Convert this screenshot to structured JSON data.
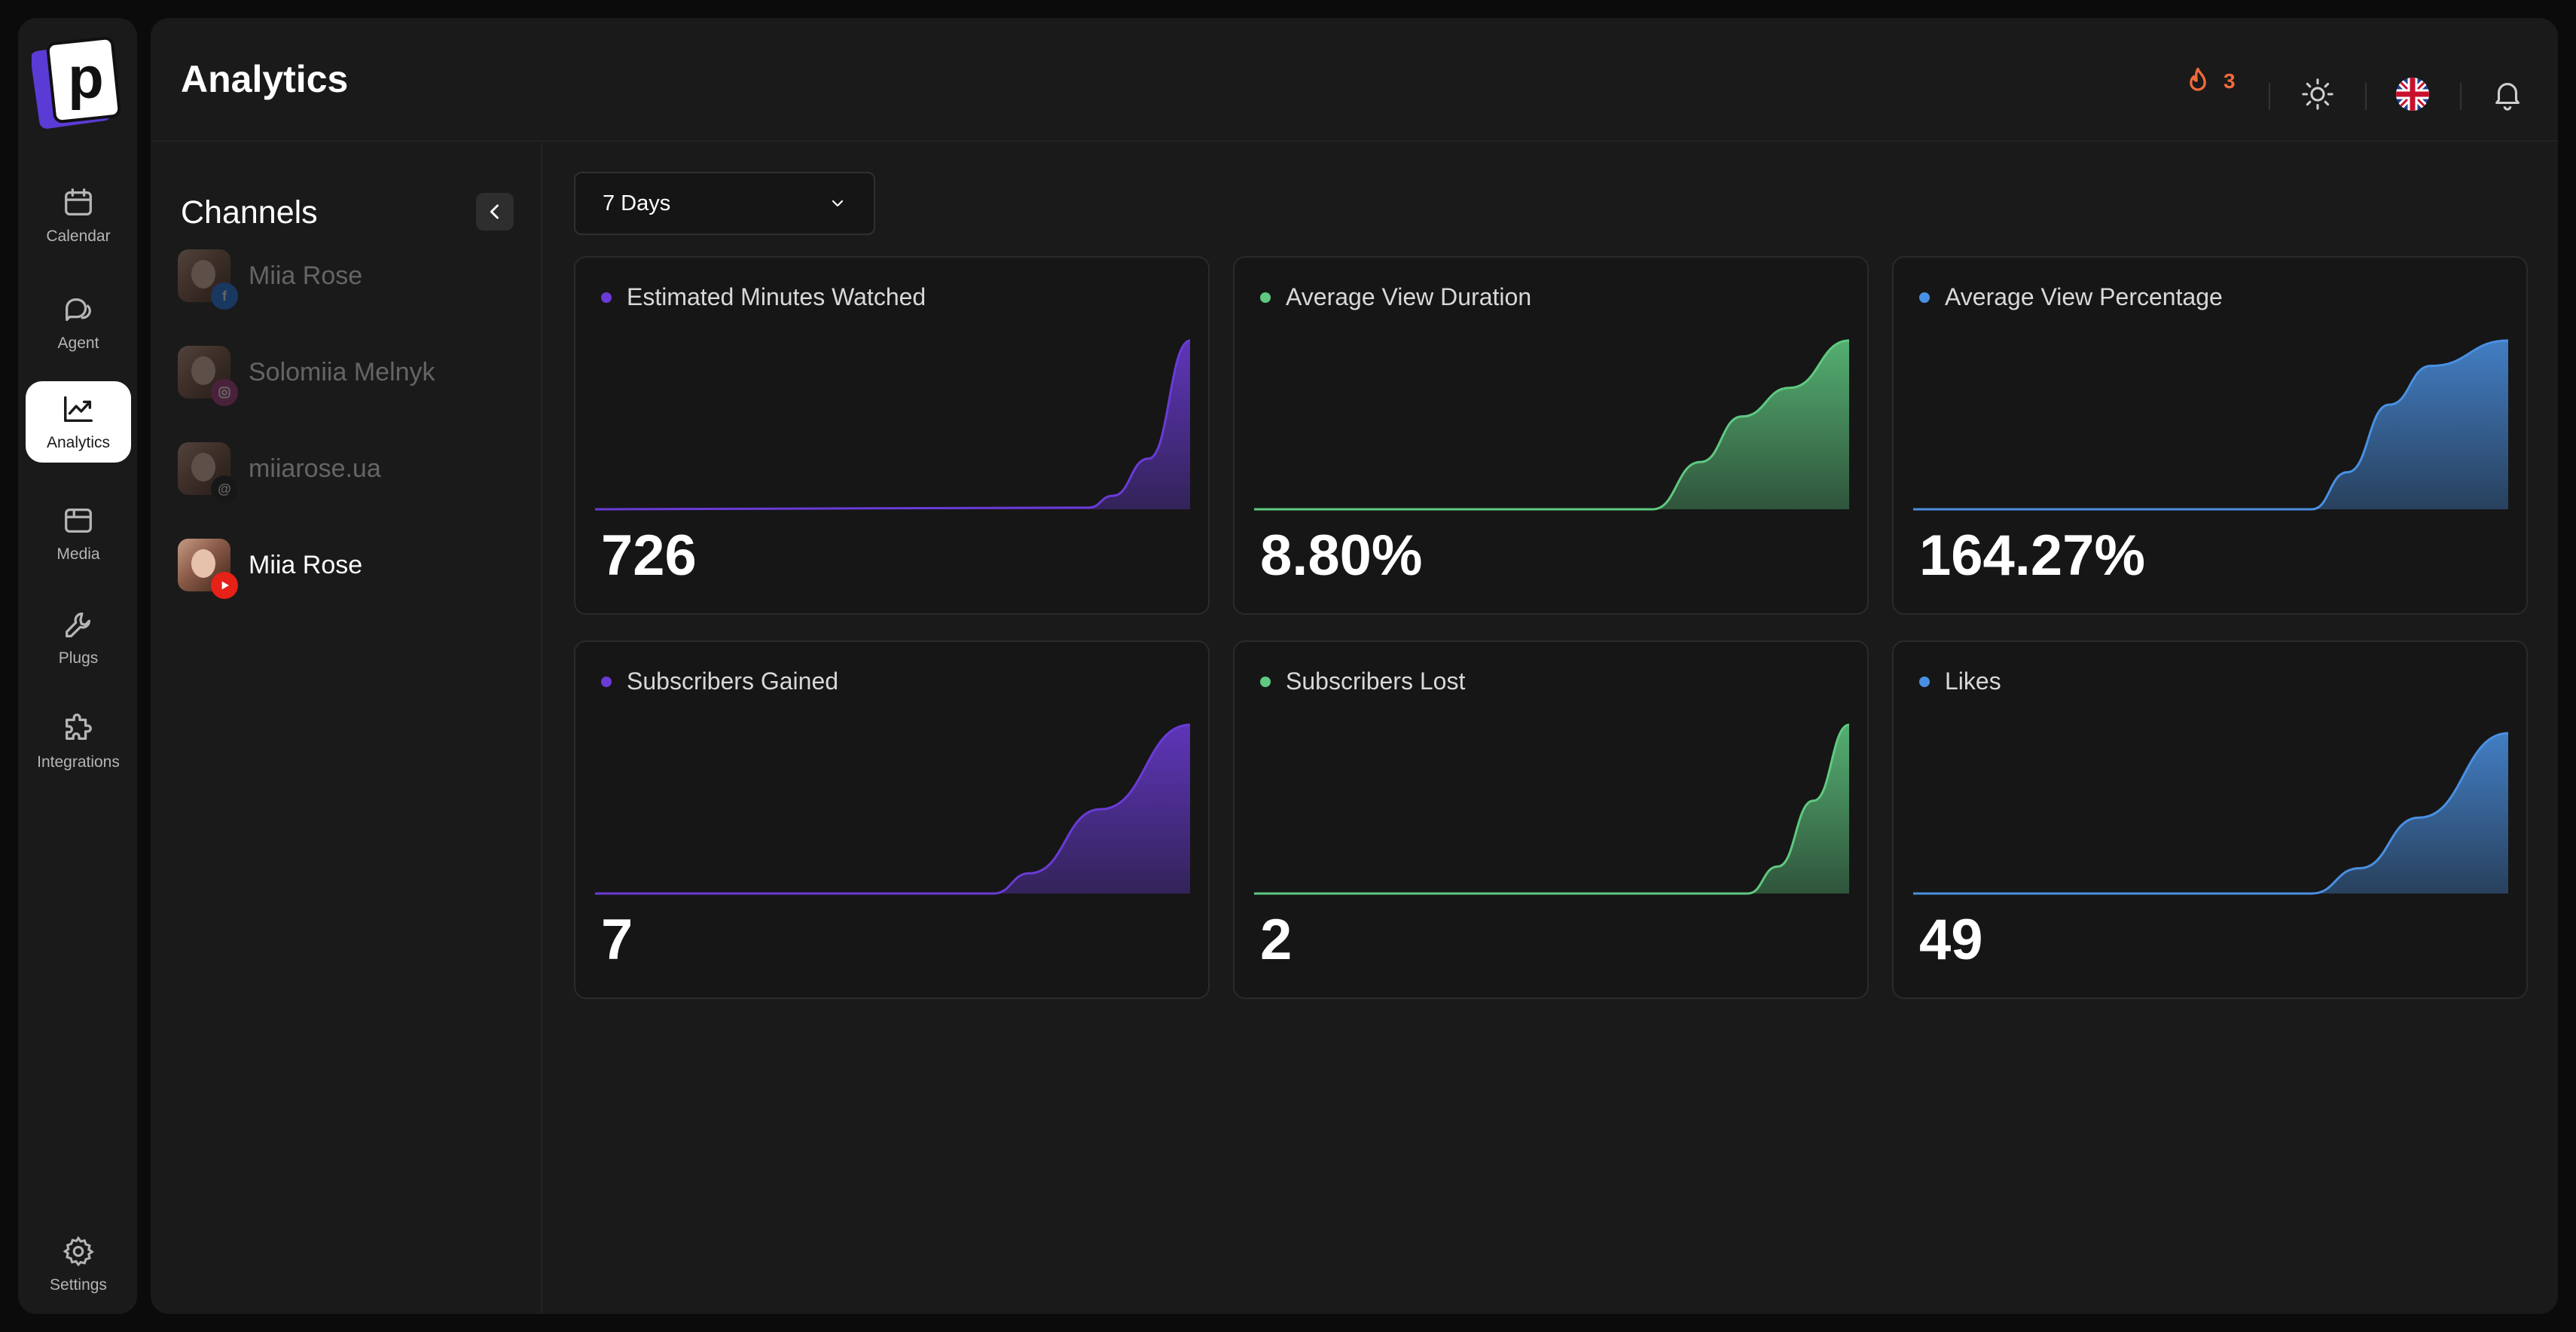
{
  "nav": {
    "items": [
      {
        "label": "Calendar",
        "icon": "calendar-icon",
        "active": false
      },
      {
        "label": "Agent",
        "icon": "chat-icon",
        "active": false
      },
      {
        "label": "Analytics",
        "icon": "trend-chart-icon",
        "active": true
      },
      {
        "label": "Media",
        "icon": "media-icon",
        "active": false
      },
      {
        "label": "Plugs",
        "icon": "wrench-icon",
        "active": false
      },
      {
        "label": "Integrations",
        "icon": "puzzle-icon",
        "active": false
      }
    ],
    "settings_label": "Settings",
    "logo_letter": "p"
  },
  "header": {
    "title": "Analytics",
    "streak_count": "3"
  },
  "channels": {
    "title": "Channels",
    "items": [
      {
        "name": "Miia Rose",
        "platform": "facebook",
        "active": false
      },
      {
        "name": "Solomiia Melnyk",
        "platform": "instagram",
        "active": false
      },
      {
        "name": "miiarose.ua",
        "platform": "threads",
        "active": false
      },
      {
        "name": "Miia Rose",
        "platform": "youtube",
        "active": true
      }
    ]
  },
  "range": {
    "selected": "7 Days"
  },
  "colors": {
    "purple": "#6a3bd6",
    "green": "#5fc981",
    "blue": "#4a90e2",
    "streak": "#f26b3a"
  },
  "metrics": [
    {
      "label": "Estimated Minutes Watched",
      "value": "726",
      "color": "purple"
    },
    {
      "label": "Average View Duration",
      "value": "8.80%",
      "color": "green"
    },
    {
      "label": "Average View Percentage",
      "value": "164.27%",
      "color": "blue"
    },
    {
      "label": "Subscribers Gained",
      "value": "7",
      "color": "purple"
    },
    {
      "label": "Subscribers Lost",
      "value": "2",
      "color": "green"
    },
    {
      "label": "Likes",
      "value": "49",
      "color": "blue"
    }
  ]
}
